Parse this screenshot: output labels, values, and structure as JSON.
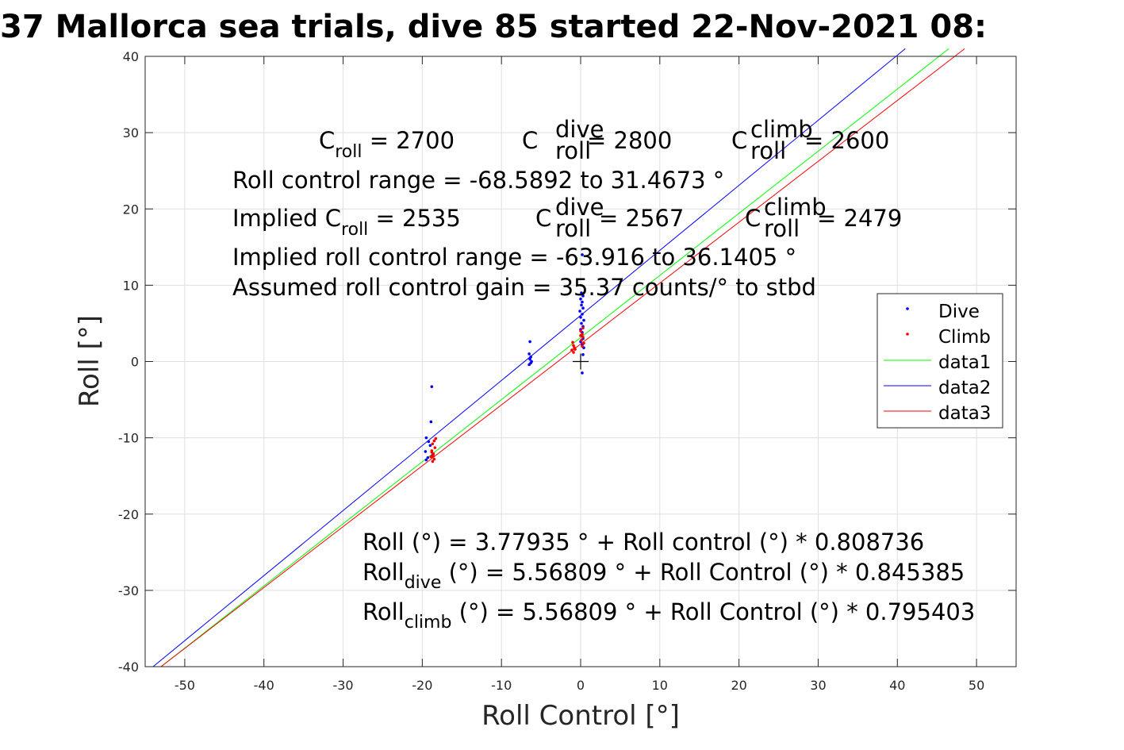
{
  "chart_data": {
    "type": "scatter",
    "title": "37 Mallorca sea trials, dive 85 started 22-Nov-2021 08:",
    "xlabel": "Roll Control [°]",
    "ylabel": "Roll [°]",
    "xlim": [
      -55,
      55
    ],
    "ylim": [
      -40,
      40
    ],
    "xticks": [
      -50,
      -40,
      -30,
      -20,
      -10,
      0,
      10,
      20,
      30,
      40,
      50
    ],
    "yticks": [
      -40,
      -30,
      -20,
      -10,
      0,
      10,
      20,
      30,
      40
    ],
    "grid": true,
    "legend_placement": "right",
    "colors": {
      "Dive": "#0000ff",
      "Climb": "#ff0000",
      "data1": "#00ff00",
      "data2": "#0000ff",
      "data3": "#ff0000"
    },
    "series": [
      {
        "name": "Dive",
        "kind": "points",
        "points": [
          [
            -18.8,
            -3.3
          ],
          [
            -18.9,
            -7.9
          ],
          [
            -19.5,
            -10.0
          ],
          [
            -19.2,
            -10.5
          ],
          [
            -19.0,
            -11.0
          ],
          [
            -19.6,
            -11.8
          ],
          [
            -19.3,
            -12.6
          ],
          [
            -19.5,
            -12.9
          ],
          [
            -18.7,
            -12.3
          ],
          [
            -6.4,
            2.6
          ],
          [
            -6.5,
            1.0
          ],
          [
            -6.3,
            0.6
          ],
          [
            -6.4,
            0.3
          ],
          [
            -6.2,
            0.0
          ],
          [
            -6.5,
            -0.4
          ],
          [
            -6.3,
            -0.2
          ],
          [
            0.2,
            14.0
          ],
          [
            0.1,
            9.0
          ],
          [
            0.3,
            8.6
          ],
          [
            0.0,
            8.2
          ],
          [
            0.2,
            7.8
          ],
          [
            0.1,
            7.4
          ],
          [
            0.3,
            7.0
          ],
          [
            -0.1,
            6.6
          ],
          [
            0.2,
            6.2
          ],
          [
            0.0,
            5.8
          ],
          [
            0.4,
            5.4
          ],
          [
            0.1,
            5.0
          ],
          [
            0.3,
            4.6
          ],
          [
            0.0,
            4.2
          ],
          [
            0.2,
            3.8
          ],
          [
            0.1,
            3.4
          ],
          [
            0.3,
            3.0
          ],
          [
            0.0,
            2.6
          ],
          [
            0.2,
            2.2
          ],
          [
            0.4,
            1.8
          ],
          [
            0.3,
            0.9
          ],
          [
            0.2,
            -1.5
          ]
        ]
      },
      {
        "name": "Climb",
        "kind": "points",
        "points": [
          [
            -18.5,
            -10.4
          ],
          [
            -18.7,
            -10.8
          ],
          [
            -18.4,
            -11.3
          ],
          [
            -18.8,
            -11.7
          ],
          [
            -18.6,
            -12.1
          ],
          [
            -18.9,
            -12.5
          ],
          [
            -18.5,
            -12.8
          ],
          [
            -18.7,
            -13.1
          ],
          [
            -18.3,
            -10.1
          ],
          [
            -18.8,
            -11.9
          ],
          [
            -18.6,
            -12.4
          ],
          [
            -1.0,
            2.5
          ],
          [
            -0.9,
            2.1
          ],
          [
            -0.8,
            1.8
          ],
          [
            -1.1,
            1.5
          ],
          [
            -0.9,
            1.2
          ],
          [
            -0.7,
            1.6
          ],
          [
            0.0,
            4.0
          ],
          [
            0.2,
            3.6
          ],
          [
            0.3,
            3.2
          ],
          [
            0.1,
            2.8
          ],
          [
            0.4,
            2.4
          ],
          [
            0.2,
            2.0
          ],
          [
            0.0,
            3.4
          ],
          [
            0.3,
            4.4
          ]
        ]
      },
      {
        "name": "data1",
        "kind": "line",
        "x": [
          -53,
          46.5
        ],
        "y": [
          -40,
          41
        ]
      },
      {
        "name": "data2",
        "kind": "line",
        "x": [
          -54,
          41
        ],
        "y": [
          -40,
          41
        ]
      },
      {
        "name": "data3",
        "kind": "line",
        "x": [
          -53,
          48.5
        ],
        "y": [
          -40,
          41
        ]
      },
      {
        "name": "",
        "kind": "marker",
        "marker": "+",
        "x": [
          0
        ],
        "y": [
          0
        ]
      }
    ]
  },
  "annotations": {
    "top": {
      "line1": {
        "c_roll": {
          "base": "C",
          "sub": "roll",
          "value": " = 2700"
        },
        "c_dive": {
          "base": "C",
          "sup": "dive",
          "sub": "roll",
          "value": " = 2800"
        },
        "c_climb": {
          "base": "C",
          "sup": "climb",
          "sub": "roll",
          "value": " = 2600"
        }
      },
      "line2": "Roll control range = -68.5892 to 31.4673 °",
      "line3": {
        "implied_prefix": "Implied C",
        "implied_sub": "roll",
        "implied_value": " = 2535",
        "c_dive": {
          "base": "C",
          "sup": "dive",
          "sub": "roll",
          "value": " = 2567"
        },
        "c_climb": {
          "base": "C",
          "sup": "climb",
          "sub": "roll",
          "value": " = 2479"
        }
      },
      "line4": "Implied roll control range = -63.916 to 36.1405 °",
      "line5": "Assumed roll control gain = 35.37 counts/° to stbd"
    },
    "bottom": {
      "line1": "Roll (°) = 3.77935 ° + Roll control (°) * 0.808736",
      "line2": {
        "prefix": "Roll",
        "sub": "dive",
        "rest": " (°) = 5.56809 ° + Roll Control (°) * 0.845385"
      },
      "line3": {
        "prefix": "Roll",
        "sub": "climb",
        "rest": " (°) = 5.56809 ° + Roll Control (°) * 0.795403"
      }
    }
  }
}
